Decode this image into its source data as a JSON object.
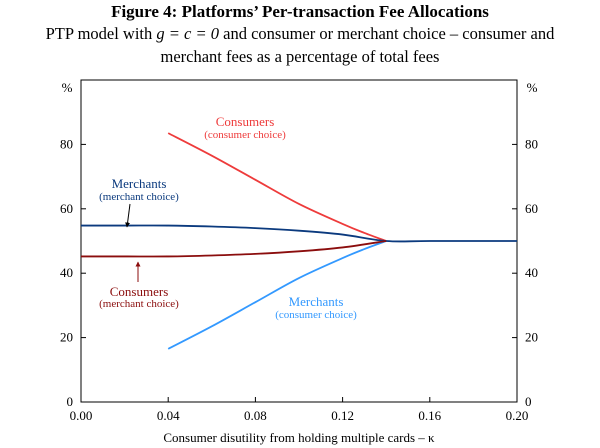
{
  "title": "Figure 4: Platforms’ Per-transaction Fee Allocations",
  "subtitle_line1_pre": "PTP model with ",
  "subtitle_math": "g = c = 0",
  "subtitle_line1_post": " and consumer or merchant choice – consumer and",
  "subtitle_line2": "merchant fees as a percentage of total fees",
  "chart_data": {
    "type": "line",
    "xlabel": "Consumer disutility from holding multiple cards – κ",
    "ylabel_left": "%",
    "ylabel_right": "%",
    "xlim": [
      0,
      0.2
    ],
    "ylim": [
      0,
      100
    ],
    "x_ticks": [
      "0.00",
      "0.04",
      "0.08",
      "0.12",
      "0.16",
      "0.20"
    ],
    "y_ticks": [
      "0",
      "20",
      "40",
      "60",
      "80"
    ],
    "grid": false,
    "series": [
      {
        "name": "Consumers",
        "label_sub": "(consumer choice)",
        "color": "#ee3b3b",
        "x": [
          0.04,
          0.06,
          0.08,
          0.1,
          0.12,
          0.13,
          0.14
        ],
        "y": [
          83.5,
          76.5,
          69,
          61.5,
          55.3,
          52.5,
          50
        ]
      },
      {
        "name": "Merchants",
        "label_sub": "(consumer choice)",
        "color": "#3399ff",
        "x": [
          0.04,
          0.06,
          0.08,
          0.1,
          0.12,
          0.13,
          0.14
        ],
        "y": [
          16.5,
          23.5,
          31,
          38.5,
          44.7,
          47.5,
          50
        ]
      },
      {
        "name": "Merchants",
        "label_sub": "(merchant choice)",
        "color": "#0b3a7e",
        "x": [
          0.0,
          0.02,
          0.04,
          0.06,
          0.08,
          0.1,
          0.12,
          0.14,
          0.16,
          0.2
        ],
        "y": [
          54.8,
          54.8,
          54.8,
          54.5,
          54,
          53.2,
          52,
          50,
          50,
          50
        ]
      },
      {
        "name": "Consumers",
        "label_sub": "(merchant choice)",
        "color": "#8b0d0d",
        "x": [
          0.0,
          0.02,
          0.04,
          0.06,
          0.08,
          0.1,
          0.12,
          0.14
        ],
        "y": [
          45.2,
          45.2,
          45.2,
          45.5,
          46,
          46.8,
          48,
          50
        ]
      }
    ]
  }
}
